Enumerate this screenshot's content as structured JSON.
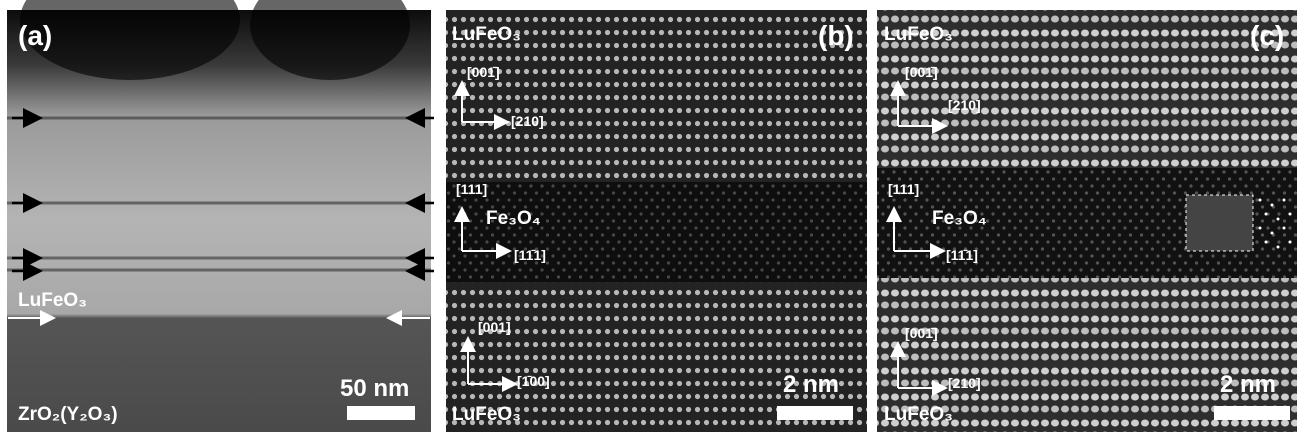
{
  "panels": [
    {
      "label": "(a)",
      "layers": [
        "LuFeO₃",
        "ZrO₂(Y₂O₃)"
      ],
      "scale_bar": "50 nm"
    },
    {
      "label": "(b)",
      "top_layer": "LuFeO₃",
      "middle_layer": "Fe₃O₄",
      "bottom_layer": "LuFeO₃",
      "top_axes": [
        "[001̄]",
        "[210]"
      ],
      "middle_axes": [
        "[111]",
        "[11̄1]"
      ],
      "bottom_axes": [
        "[001]",
        "[1̄00]"
      ],
      "scale_bar": "2 nm"
    },
    {
      "label": "(c)",
      "top_layer": "LuFeO₃",
      "middle_layer": "Fe₃O₄",
      "bottom_layer": "LuFeO₃",
      "top_axes": [
        "[001̄]",
        "[210]"
      ],
      "middle_axes": [
        "[111]",
        "[11̄1]"
      ],
      "bottom_axes": [
        "[001̄]",
        "[210]"
      ],
      "scale_bar": "2 nm"
    }
  ]
}
